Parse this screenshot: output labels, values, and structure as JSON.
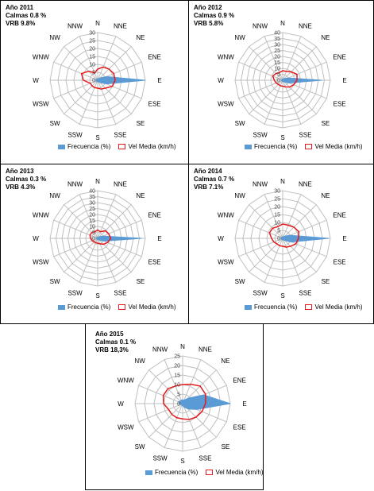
{
  "directions": [
    "N",
    "NNE",
    "NE",
    "ENE",
    "E",
    "ESE",
    "SE",
    "SSE",
    "S",
    "SSW",
    "SW",
    "WSW",
    "W",
    "WNW",
    "NW",
    "NNW"
  ],
  "legend": {
    "freq_label": "Frecuencia (%)",
    "vel_label": "Vel Media (km/h)"
  },
  "colors": {
    "freq": "#5b9bd5",
    "vel": "#e41a1c",
    "grid": "#bfbfbf"
  },
  "panels": [
    {
      "title": "Año 2011",
      "calmas": "Calmas 0.8 %",
      "vrb": "VRB 9.8%"
    },
    {
      "title": "Año 2012",
      "calmas": "Calmas 0.9 %",
      "vrb": "VRB 5.8%"
    },
    {
      "title": "Año 2013",
      "calmas": "Calmas 0.3 %",
      "vrb": "VRB 4.3%"
    },
    {
      "title": "Año 2014",
      "calmas": "Calmas 0.7 %",
      "vrb": "VRB 7.1%"
    },
    {
      "title": "Año 2015",
      "calmas": "Calmas 0.1 %",
      "vrb": "VRB 18,3%"
    }
  ],
  "chart_data": [
    {
      "type": "radar",
      "title": "Año 2011",
      "rmax": 30,
      "ticks": [
        0,
        5,
        10,
        15,
        20,
        25,
        30
      ],
      "categories": [
        "N",
        "NNE",
        "NE",
        "ENE",
        "E",
        "ESE",
        "SE",
        "SSE",
        "S",
        "SSW",
        "SW",
        "WSW",
        "W",
        "WNW",
        "NW",
        "NNW"
      ],
      "series": [
        {
          "name": "Frecuencia (%)",
          "values": [
            1,
            1,
            2,
            6,
            30,
            6,
            2,
            1,
            1,
            1,
            1,
            1,
            1,
            1,
            1,
            1
          ]
        },
        {
          "name": "Vel Media (km/h)",
          "values": [
            7,
            9,
            10,
            11,
            11,
            10,
            7,
            6,
            5,
            5,
            5,
            5,
            9,
            11,
            8,
            5
          ]
        }
      ]
    },
    {
      "type": "radar",
      "title": "Año 2012",
      "rmax": 40,
      "ticks": [
        0,
        5,
        10,
        15,
        20,
        25,
        30,
        35,
        40
      ],
      "categories": [
        "N",
        "NNE",
        "NE",
        "ENE",
        "E",
        "ESE",
        "SE",
        "SSE",
        "S",
        "SSW",
        "SW",
        "WSW",
        "W",
        "WNW",
        "NW",
        "NNW"
      ],
      "series": [
        {
          "name": "Frecuencia (%)",
          "values": [
            1,
            1,
            2,
            5,
            33,
            6,
            2,
            1,
            1,
            1,
            1,
            1,
            1,
            1,
            1,
            1
          ]
        },
        {
          "name": "Vel Media (km/h)",
          "values": [
            8,
            8,
            10,
            13,
            12,
            10,
            8,
            6,
            5,
            5,
            5,
            6,
            7,
            9,
            8,
            7
          ]
        }
      ]
    },
    {
      "type": "radar",
      "title": "Año 2013",
      "rmax": 40,
      "ticks": [
        0,
        5,
        10,
        15,
        20,
        25,
        30,
        35,
        40
      ],
      "categories": [
        "N",
        "NNE",
        "NE",
        "ENE",
        "E",
        "ESE",
        "SE",
        "SSE",
        "S",
        "SSW",
        "SW",
        "WSW",
        "W",
        "WNW",
        "NW",
        "NNW"
      ],
      "series": [
        {
          "name": "Frecuencia (%)",
          "values": [
            1,
            1,
            2,
            5,
            37,
            6,
            2,
            1,
            1,
            1,
            1,
            1,
            1,
            1,
            1,
            1
          ]
        },
        {
          "name": "Vel Media (km/h)",
          "values": [
            7,
            6,
            9,
            10,
            11,
            9,
            7,
            5,
            4,
            4,
            4,
            5,
            6,
            7,
            7,
            6
          ]
        }
      ]
    },
    {
      "type": "radar",
      "title": "Año 2014",
      "rmax": 30,
      "ticks": [
        0,
        5,
        10,
        15,
        20,
        25,
        30
      ],
      "categories": [
        "N",
        "NNE",
        "NE",
        "ENE",
        "E",
        "ESE",
        "SE",
        "SSE",
        "S",
        "SSW",
        "SW",
        "WSW",
        "W",
        "WNW",
        "NW",
        "NNW"
      ],
      "series": [
        {
          "name": "Frecuencia (%)",
          "values": [
            1,
            1,
            2,
            5,
            29,
            6,
            2,
            1,
            1,
            1,
            1,
            1,
            1,
            1,
            1,
            1
          ]
        },
        {
          "name": "Vel Media (km/h)",
          "values": [
            9,
            9,
            10,
            11,
            10,
            9,
            7,
            6,
            5,
            5,
            5,
            6,
            7,
            9,
            9,
            8
          ]
        }
      ]
    },
    {
      "type": "radar",
      "title": "Año 2015",
      "rmax": 25,
      "ticks": [
        0,
        5,
        10,
        15,
        20,
        25
      ],
      "categories": [
        "N",
        "NNE",
        "NE",
        "ENE",
        "E",
        "ESE",
        "SE",
        "SSE",
        "S",
        "SSW",
        "SW",
        "WSW",
        "W",
        "WNW",
        "NW",
        "NNW"
      ],
      "series": [
        {
          "name": "Frecuencia (%)",
          "values": [
            2,
            2,
            4,
            12,
            25,
            8,
            4,
            2,
            1,
            1,
            1,
            1,
            2,
            2,
            2,
            2
          ]
        },
        {
          "name": "Vel Media (km/h)",
          "values": [
            10,
            11,
            13,
            13,
            12,
            11,
            10,
            9,
            8,
            8,
            8,
            8,
            10,
            11,
            11,
            10
          ]
        }
      ]
    }
  ]
}
